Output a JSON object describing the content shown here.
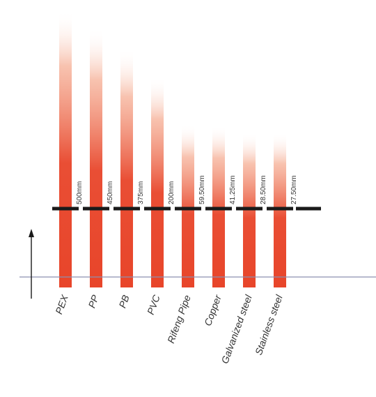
{
  "chart_data": {
    "type": "bar",
    "title": "",
    "xlabel": "",
    "ylabel": "",
    "categories": [
      "PEX",
      "PP",
      "PB",
      "PVC",
      "Rifeng Pipe",
      "Copper",
      "Galvanized steel",
      "Stainless steel"
    ],
    "values": [
      500,
      450,
      375,
      200,
      59.5,
      41.25,
      28.5,
      27.5
    ],
    "value_labels": [
      "500mm",
      "450mm",
      "375mm",
      "200mm",
      "59.50mm",
      "41.25mm",
      "28.50mm",
      "27.50mm"
    ],
    "colors": {
      "bar_base": "#e8452a",
      "bar_fade": "#ffffff",
      "baseline": "#8c8fb0",
      "marker": "#1a1a1a",
      "text": "#333333"
    }
  }
}
